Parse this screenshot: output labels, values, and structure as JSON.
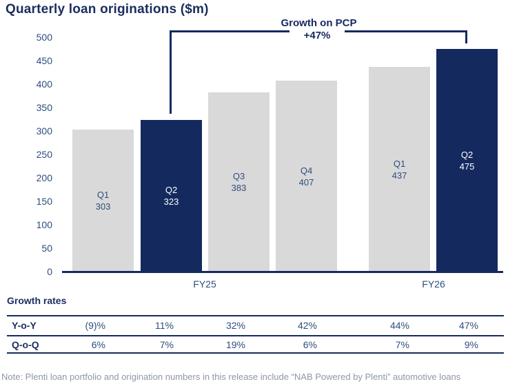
{
  "title": "Quarterly loan originations ($m)",
  "annotation": {
    "label": "Growth on PCP",
    "value": "+47%",
    "connects": [
      "Q2 FY25",
      "Q2 FY26"
    ]
  },
  "chart_data": {
    "type": "bar",
    "title": "Quarterly loan originations ($m)",
    "categories": [
      "Q1",
      "Q2",
      "Q3",
      "Q4",
      "Q1",
      "Q2"
    ],
    "values": [
      303,
      323,
      383,
      407,
      437,
      475
    ],
    "highlighted": [
      false,
      true,
      false,
      false,
      false,
      true
    ],
    "groups": [
      {
        "label": "FY25",
        "bars": [
          0,
          1,
          2,
          3
        ]
      },
      {
        "label": "FY26",
        "bars": [
          4,
          5
        ]
      }
    ],
    "ylim": [
      0,
      500
    ],
    "yticks": [
      0,
      50,
      100,
      150,
      200,
      250,
      300,
      350,
      400,
      450,
      500
    ],
    "gridlines": false,
    "legend": false,
    "annotation": {
      "label": "Growth on PCP",
      "value": "+47%"
    }
  },
  "growth_table": {
    "heading": "Growth rates",
    "rows": [
      {
        "label": "Y-o-Y",
        "values": [
          "(9)%",
          "11%",
          "32%",
          "42%",
          "44%",
          "47%"
        ]
      },
      {
        "label": "Q-o-Q",
        "values": [
          "6%",
          "7%",
          "19%",
          "6%",
          "7%",
          "9%"
        ]
      }
    ]
  },
  "note": "Note: Plenti loan portfolio and origination numbers in this release include “NAB Powered by Plenti” automotive loans",
  "colors": {
    "bar_navy": "#142a5e",
    "bar_gray": "#d9d9d9",
    "text_navy": "#2f4d7d",
    "dark_navy": "#1b2d5e",
    "line_navy": "#16295e",
    "note_gray": "#8e96aa",
    "white": "#ffffff"
  }
}
